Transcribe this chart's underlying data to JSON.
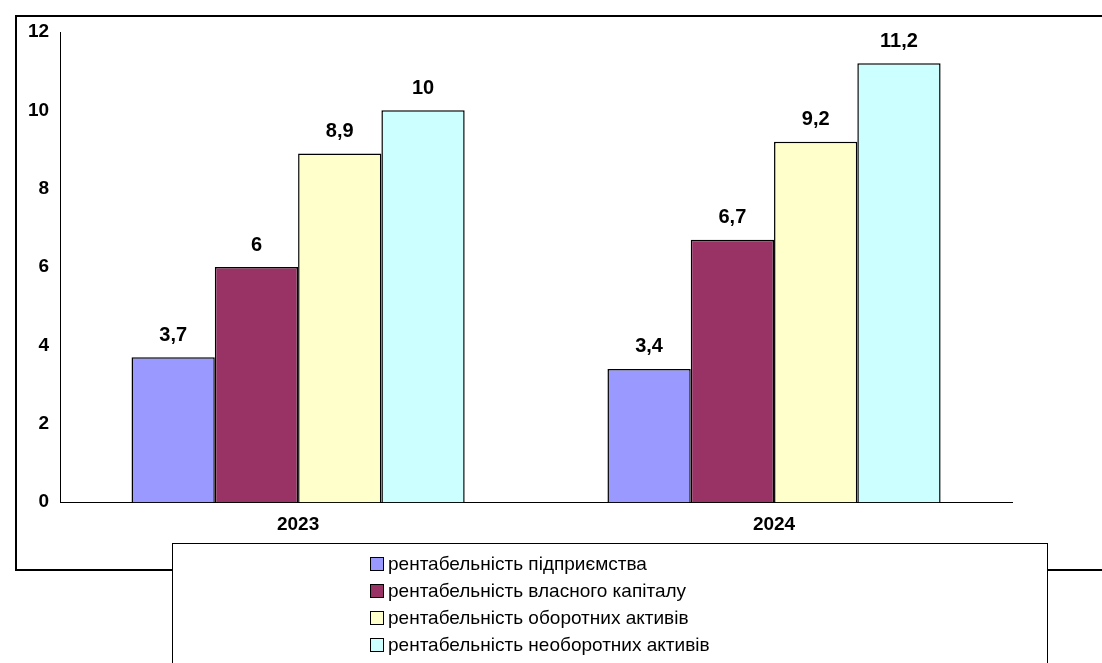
{
  "chart_data": {
    "type": "bar",
    "categories": [
      "2023",
      "2024"
    ],
    "series": [
      {
        "name": "рентабельність підприємства",
        "color": "#9999ff",
        "values": [
          3.7,
          3.4
        ],
        "value_labels": [
          "3,7",
          "3,4"
        ]
      },
      {
        "name": "рентабельність власного капіталу",
        "color": "#993366",
        "values": [
          6,
          6.7
        ],
        "value_labels": [
          "6",
          "6,7"
        ]
      },
      {
        "name": "рентабельність оборотних активів",
        "color": "#ffffcc",
        "values": [
          8.9,
          9.2
        ],
        "value_labels": [
          "8,9",
          "9,2"
        ]
      },
      {
        "name": "рентабельність необоротних активів",
        "color": "#ccffff",
        "values": [
          10,
          11.2
        ],
        "value_labels": [
          "10",
          "11,2"
        ]
      }
    ],
    "ylim": [
      0,
      12
    ],
    "yticks": [
      0,
      2,
      4,
      6,
      8,
      10,
      12
    ],
    "grid": false,
    "legend": "bottom"
  }
}
